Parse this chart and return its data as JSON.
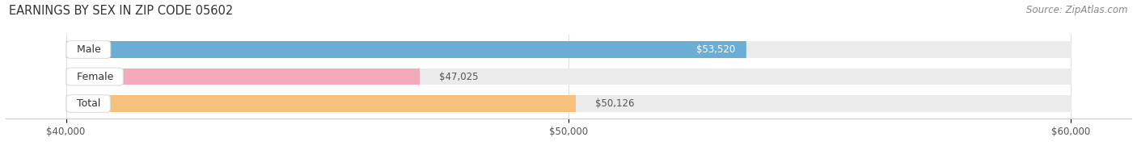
{
  "title": "EARNINGS BY SEX IN ZIP CODE 05602",
  "source": "Source: ZipAtlas.com",
  "categories": [
    "Total",
    "Female",
    "Male"
  ],
  "values": [
    50126,
    47025,
    53520
  ],
  "bar_colors": [
    "#f5c07a",
    "#f4a9bc",
    "#6aaed6"
  ],
  "value_labels": [
    "$50,126",
    "$47,025",
    "$53,520"
  ],
  "value_inside": [
    false,
    false,
    true
  ],
  "xmin": 40000,
  "xmax": 60000,
  "xticks": [
    40000,
    50000,
    60000
  ],
  "xtick_labels": [
    "$40,000",
    "$50,000",
    "$60,000"
  ],
  "background_color": "#ffffff",
  "bar_bg_color": "#ebebeb",
  "title_fontsize": 10.5,
  "source_fontsize": 8.5,
  "tick_fontsize": 8.5,
  "label_fontsize": 9,
  "value_fontsize": 8.5,
  "bar_height": 0.62,
  "bar_gap": 0.18
}
